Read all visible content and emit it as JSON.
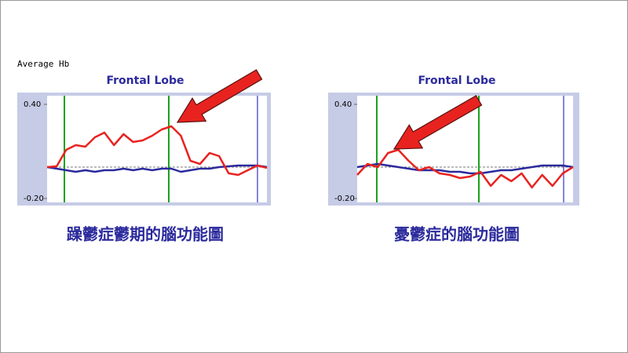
{
  "chart_data": [
    {
      "type": "line",
      "y_label": "Average Hb",
      "title": "Frontal Lobe",
      "caption": "躁鬱症鬱期的腦功能圖",
      "ylim": [
        -0.235,
        0.465
      ],
      "yticks": [
        {
          "value": 0.4,
          "label": "0.40"
        },
        {
          "value": -0.2,
          "label": "-0.20"
        }
      ],
      "series": [
        {
          "color": "#e8231f",
          "values": [
            0,
            0.005,
            0.11,
            0.14,
            0.13,
            0.19,
            0.22,
            0.14,
            0.21,
            0.16,
            0.17,
            0.2,
            0.24,
            0.26,
            0.2,
            0.04,
            0.02,
            0.09,
            0.07,
            -0.04,
            -0.05,
            -0.02,
            0.01,
            -0.005
          ]
        },
        {
          "color": "#2b2a9c",
          "values": [
            0,
            -0.01,
            -0.02,
            -0.03,
            -0.02,
            -0.03,
            -0.02,
            -0.02,
            -0.01,
            -0.02,
            -0.01,
            -0.02,
            -0.01,
            -0.01,
            -0.03,
            -0.02,
            -0.01,
            -0.01,
            0,
            0.005,
            0.01,
            0.01,
            0.01,
            0
          ]
        }
      ]
    },
    {
      "type": "line",
      "title": "Frontal Lobe",
      "caption": "憂鬱症的腦功能圖",
      "ylim": [
        -0.235,
        0.465
      ],
      "yticks": [
        {
          "value": 0.4,
          "label": "0.40"
        },
        {
          "value": -0.2,
          "label": "-0.20"
        }
      ],
      "series": [
        {
          "color": "#e8231f",
          "values": [
            -0.05,
            0.02,
            0,
            0.09,
            0.11,
            0.04,
            -0.02,
            0,
            -0.04,
            -0.05,
            -0.07,
            -0.06,
            -0.03,
            -0.12,
            -0.05,
            -0.09,
            -0.04,
            -0.13,
            -0.05,
            -0.12,
            -0.04,
            0
          ]
        },
        {
          "color": "#2b2a9c",
          "values": [
            0,
            0.01,
            0.02,
            0.01,
            0,
            -0.01,
            -0.02,
            -0.02,
            -0.02,
            -0.03,
            -0.03,
            -0.04,
            -0.04,
            -0.03,
            -0.02,
            -0.02,
            -0.01,
            0,
            0.01,
            0.01,
            0.01,
            0
          ]
        }
      ]
    }
  ]
}
